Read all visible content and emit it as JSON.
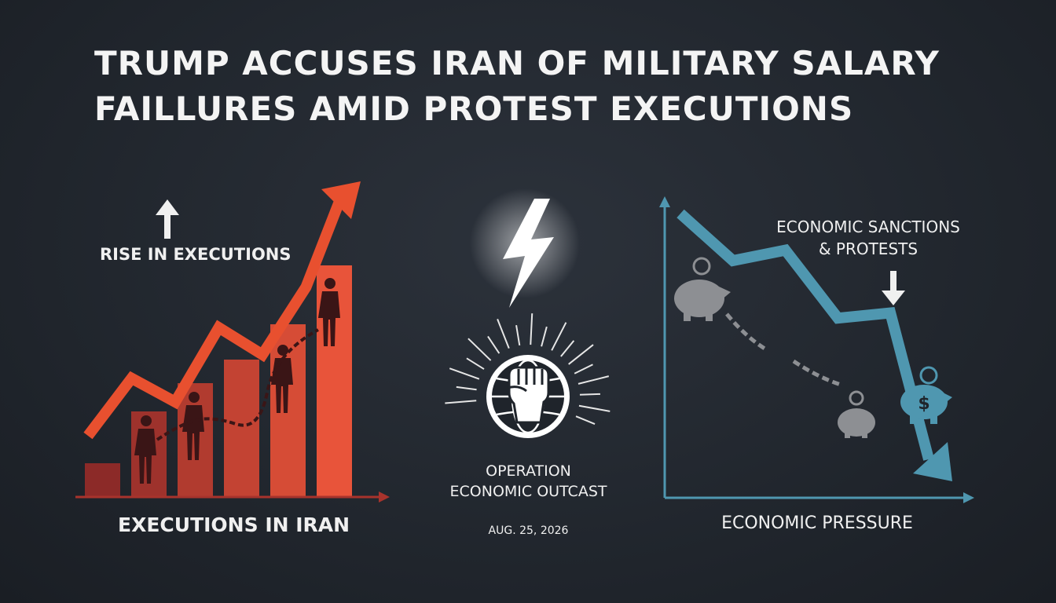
{
  "headline": {
    "line1": "TRUMP ACCUSES IRAN OF MILITARY SALARY",
    "line2": "FAILLURES AMID PROTEST EXECUTIONS"
  },
  "left_panel": {
    "annotation": "RISE IN EXECUTIONS",
    "caption": "EXECUTIONS IN IRAN",
    "bar_levels": [
      0.14,
      0.36,
      0.48,
      0.58,
      0.73,
      0.98
    ],
    "trend_levels": [
      0.28,
      0.45,
      0.38,
      0.6,
      0.52,
      0.72,
      1.0
    ],
    "colors": {
      "trend": "#e8502f",
      "bar_dark": "#8c2a28",
      "bar_light": "#e8543a"
    }
  },
  "center_panel": {
    "icons": [
      "lightning-bolt-icon",
      "raised-fist-globe-icon"
    ],
    "title_line1": "OPERATION",
    "title_line2": "ECONOMIC OUTCAST",
    "date": "AUG. 25, 2026"
  },
  "right_panel": {
    "annotation_line1": "ECONOMIC SANCTIONS",
    "annotation_line2": "& PROTESTS",
    "caption": "ECONOMIC PRESSURE",
    "trend_levels": [
      1.0,
      0.82,
      0.86,
      0.6,
      0.62,
      0.0
    ],
    "icons": [
      "piggy-bank-icon",
      "dollar-coin-icon",
      "broken-chain-icon"
    ],
    "colors": {
      "trend": "#4f97b0",
      "axis": "#4f97b0",
      "piggy": "#8d8f93"
    }
  }
}
